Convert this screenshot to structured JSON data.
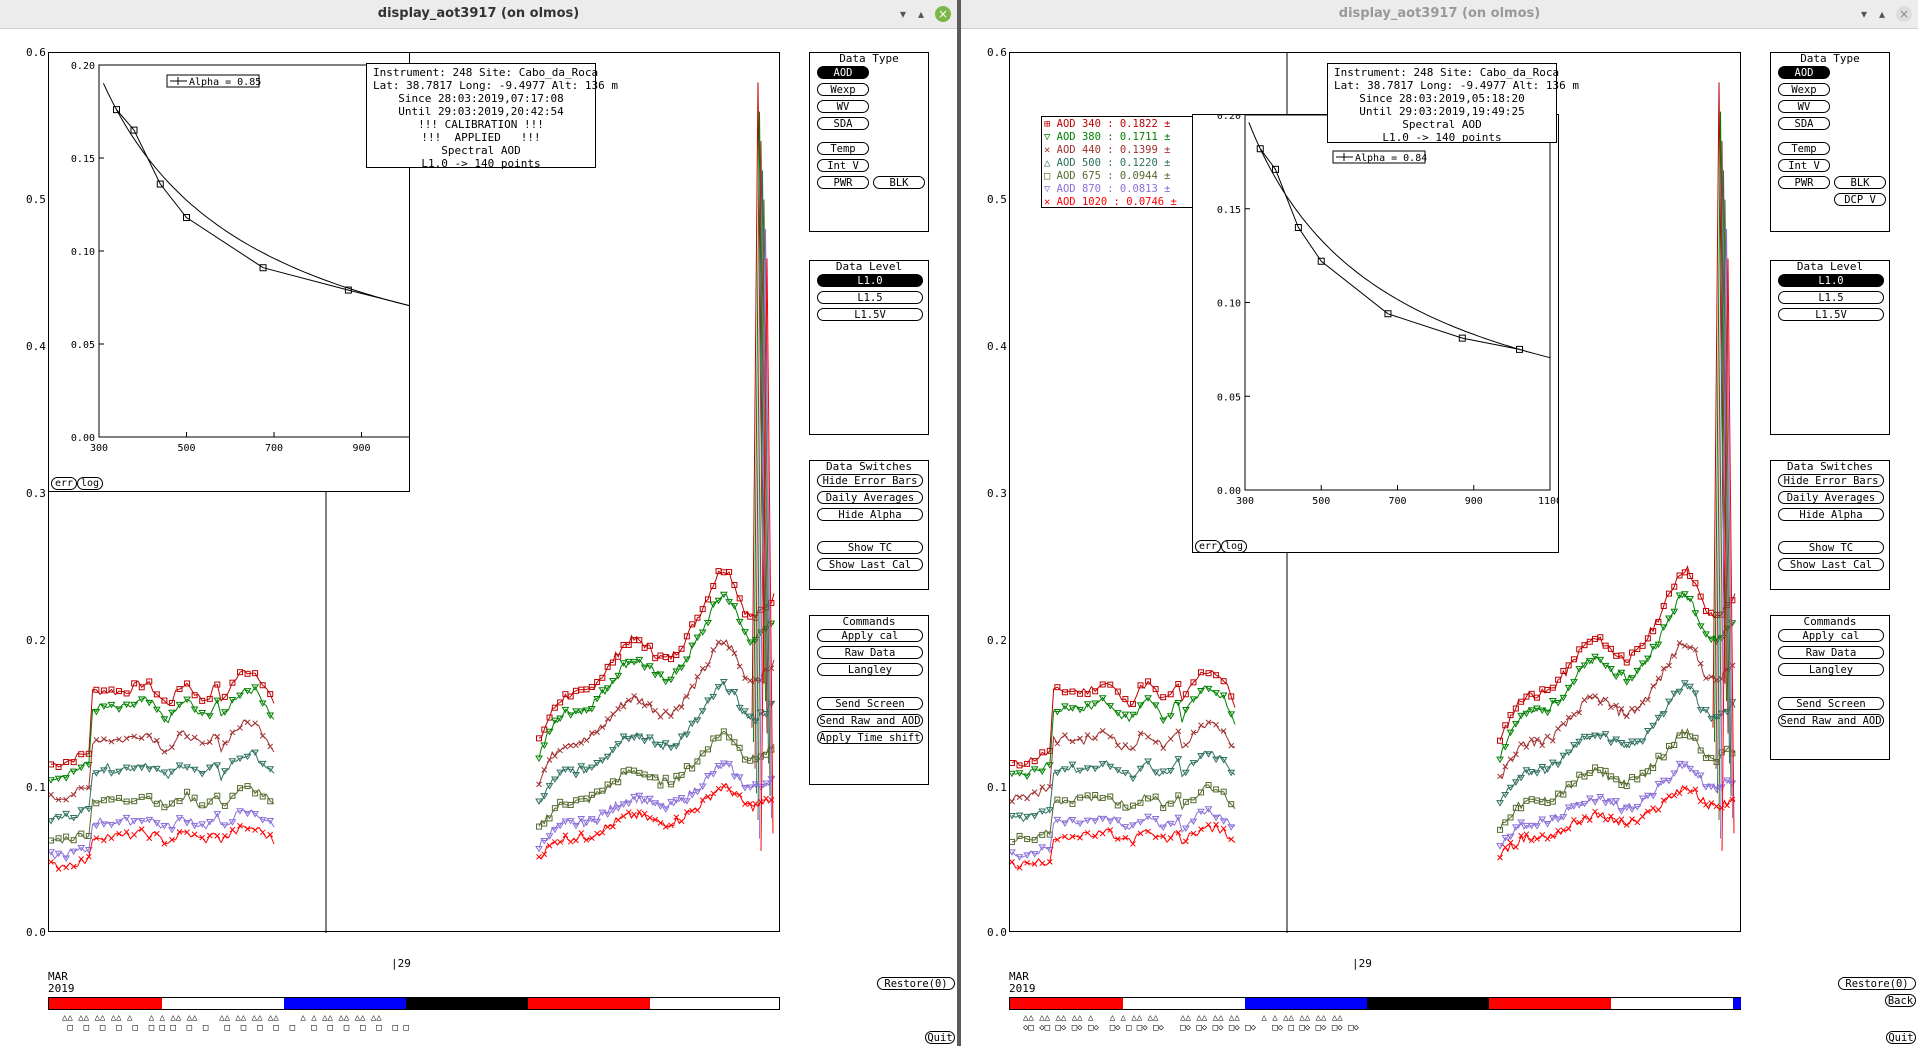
{
  "left": {
    "title": "display_aot3917 (on olmos)",
    "info": {
      "instrument": "Instrument: 248 Site: Cabo_da_Roca",
      "latlong": "Lat: 38.7817 Long: -9.4977 Alt: 136 m",
      "since": "Since 28:03:2019,07:17:08",
      "until": "Until 29:03:2019,20:42:54",
      "cal1": "!!! CALIBRATION !!!",
      "cal2": "!!!  APPLIED   !!!",
      "type": "Spectral AOD",
      "level": "L1.0 -> 140 points"
    },
    "alpha_label": "Alpha = 0.85",
    "err_label": "err",
    "log_label": "log",
    "day_label": "29",
    "month_label": "MAR",
    "year_label": "2019",
    "restore_label": "Restore(0)",
    "quit_label": "Quit",
    "data_type": {
      "title": "Data Type",
      "buttons": [
        "AOD",
        "Wexp",
        "WV",
        "SDA",
        "Temp",
        "Int V",
        "PWR",
        "BLK"
      ]
    },
    "data_level": {
      "title": "Data Level",
      "buttons": [
        "L1.0",
        "L1.5",
        "L1.5V"
      ]
    },
    "data_switches": {
      "title": "Data Switches",
      "buttons": [
        "Hide Error Bars",
        "Daily Averages",
        "Hide Alpha",
        "Show TC",
        "Show Last Cal"
      ]
    },
    "commands": {
      "title": "Commands",
      "buttons": [
        "Apply cal",
        "Raw Data",
        "Langley",
        "Send Screen",
        "Send Raw and AOD",
        "Apply Time shift"
      ]
    }
  },
  "right": {
    "title": "display_aot3917 (on olmos)",
    "info": {
      "instrument": "Instrument: 248 Site: Cabo_da_Roca",
      "latlong": "Lat: 38.7817 Long: -9.4977 Alt: 136 m",
      "since": "Since 28:03:2019,05:18:20",
      "until": "Until 29:03:2019,19:49:25",
      "type": "Spectral AOD",
      "level": "L1.0 -> 140 points"
    },
    "alpha_label": "Alpha = 0.84",
    "err_label": "err",
    "log_label": "log",
    "day_label": "29",
    "month_label": "MAR",
    "year_label": "2019",
    "restore_label": "Restore(0)",
    "back_label": "Back",
    "quit_label": "Quit",
    "legend": [
      {
        "text": "AOD 340  : 0.1822 ±",
        "color": "#c00000"
      },
      {
        "text": "AOD 380  : 0.1711 ±",
        "color": "#008000"
      },
      {
        "text": "AOD 440  : 0.1399 ±",
        "color": "#a03030"
      },
      {
        "text": "AOD 500  : 0.1220 ±",
        "color": "#2e7060"
      },
      {
        "text": "AOD 675  : 0.0944 ±",
        "color": "#556b2f"
      },
      {
        "text": "AOD 870  : 0.0813 ±",
        "color": "#8a6fd8"
      },
      {
        "text": "AOD 1020  : 0.0746 ±",
        "color": "#ff0000"
      }
    ],
    "data_type": {
      "title": "Data Type",
      "buttons": [
        "AOD",
        "Wexp",
        "WV",
        "SDA",
        "Temp",
        "Int V",
        "PWR",
        "BLK",
        "DCP V"
      ]
    },
    "data_level": {
      "title": "Data Level",
      "buttons": [
        "L1.0",
        "L1.5",
        "L1.5V"
      ]
    },
    "data_switches": {
      "title": "Data Switches",
      "buttons": [
        "Hide Error Bars",
        "Daily Averages",
        "Hide Alpha",
        "Show TC",
        "Show Last Cal"
      ]
    },
    "commands": {
      "title": "Commands",
      "buttons": [
        "Apply cal",
        "Raw Data",
        "Langley",
        "Send Screen",
        "Send Raw and AOD"
      ]
    }
  },
  "y_ticks": [
    "0.6",
    "0.5",
    "0.4",
    "0.3",
    "0.2",
    "0.1",
    "0.0"
  ],
  "inset_y_ticks": [
    "0.20",
    "0.15",
    "0.10",
    "0.05",
    "0.00"
  ],
  "inset_x_ticks": [
    "300",
    "500",
    "700",
    "900",
    "1100"
  ],
  "colors": {
    "aod340": "#c00000",
    "aod380": "#008000",
    "aod440": "#a03030",
    "aod500": "#2e7060",
    "aod675": "#556b2f",
    "aod870": "#8a6fd8",
    "aod1020": "#ff0000",
    "bar_red": "#ff0000",
    "bar_blue": "#0000ff",
    "bar_black": "#000000"
  },
  "chart_data": [
    {
      "type": "line",
      "x": [
        340,
        380,
        440,
        500,
        675,
        870,
        1020
      ],
      "values": [
        0.176,
        0.165,
        0.136,
        0.118,
        0.091,
        0.079,
        0.07
      ],
      "xlim": [
        300,
        1100
      ],
      "ylim": [
        0,
        0.2
      ]
    },
    {
      "type": "line",
      "x": [
        340,
        380,
        440,
        500,
        675,
        870,
        1020
      ],
      "values": [
        0.182,
        0.171,
        0.14,
        0.122,
        0.094,
        0.081,
        0.075
      ],
      "xlim": [
        300,
        1100
      ],
      "ylim": [
        0,
        0.2
      ]
    }
  ]
}
